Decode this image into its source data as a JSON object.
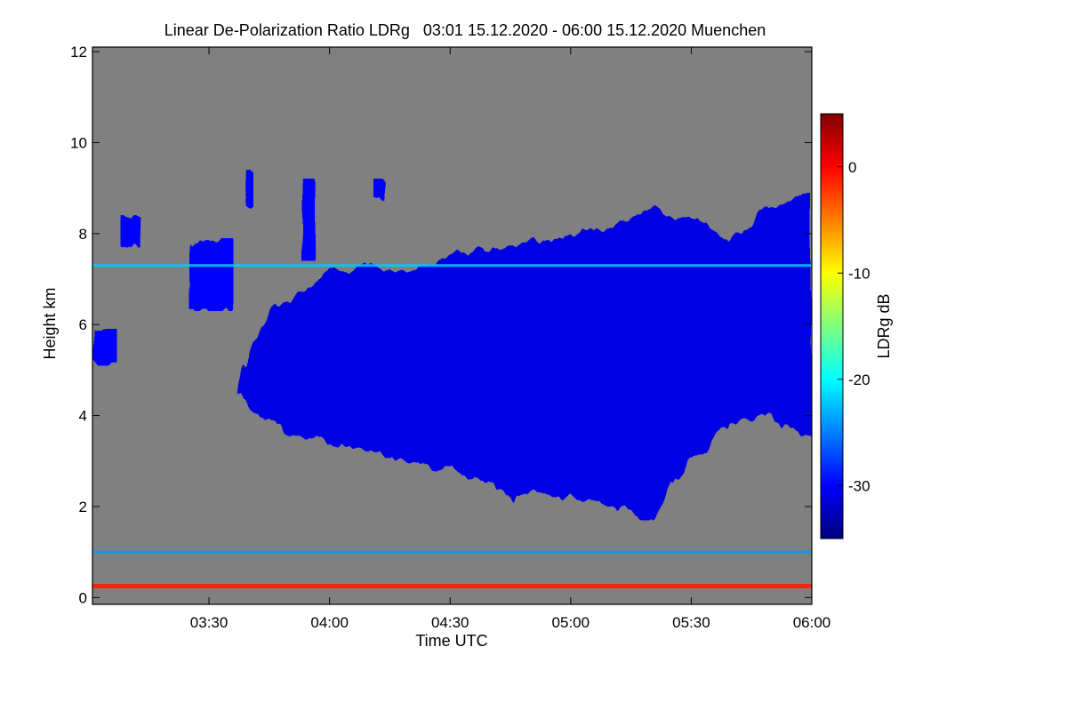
{
  "chart_data": {
    "type": "heatmap",
    "title": "Linear De-Polarization Ratio LDRg   03:01 15.12.2020 - 06:00 15.12.2020 Muenchen",
    "xlabel": "Time UTC",
    "ylabel": "Height km",
    "xlim": [
      "03:01",
      "06:00"
    ],
    "ylim": [
      -0.15,
      12.1
    ],
    "x_ticks": [
      {
        "value": "03:30",
        "label": "03:30"
      },
      {
        "value": "04:00",
        "label": "04:00"
      },
      {
        "value": "04:30",
        "label": "04:30"
      },
      {
        "value": "05:00",
        "label": "05:00"
      },
      {
        "value": "05:30",
        "label": "05:30"
      },
      {
        "value": "06:00",
        "label": "06:00"
      }
    ],
    "y_ticks": [
      {
        "value": 0,
        "label": "0"
      },
      {
        "value": 2,
        "label": "2"
      },
      {
        "value": 4,
        "label": "4"
      },
      {
        "value": 6,
        "label": "6"
      },
      {
        "value": 8,
        "label": "8"
      },
      {
        "value": 10,
        "label": "10"
      },
      {
        "value": 12,
        "label": "12"
      }
    ],
    "colorbar": {
      "label": "LDRg dB",
      "range": [
        -35,
        5
      ],
      "ticks": [
        {
          "value": 0,
          "label": "0"
        },
        {
          "value": -10,
          "label": "-10"
        },
        {
          "value": -20,
          "label": "-20"
        },
        {
          "value": -30,
          "label": "-30"
        }
      ],
      "colormap": [
        "#00007f",
        "#0000ff",
        "#007fff",
        "#00ffff",
        "#7fff7f",
        "#ffff00",
        "#ff7f00",
        "#ff0000",
        "#7f0000"
      ]
    },
    "no_data_color": "#808080",
    "features": {
      "main_cloud": {
        "ldr_db": -31,
        "top_profile": [
          [
            "03:37",
            4.6
          ],
          [
            "03:40",
            5.6
          ],
          [
            "03:45",
            6.2
          ],
          [
            "03:50",
            6.6
          ],
          [
            "03:55",
            6.8
          ],
          [
            "04:00",
            7.2
          ],
          [
            "04:10",
            7.3
          ],
          [
            "04:20",
            7.2
          ],
          [
            "04:30",
            7.5
          ],
          [
            "04:40",
            7.6
          ],
          [
            "04:50",
            7.8
          ],
          [
            "05:00",
            8.0
          ],
          [
            "05:10",
            8.2
          ],
          [
            "05:20",
            8.5
          ],
          [
            "05:30",
            8.4
          ],
          [
            "05:40",
            7.9
          ],
          [
            "05:45",
            8.2
          ],
          [
            "05:50",
            8.6
          ],
          [
            "06:00",
            8.9
          ]
        ],
        "base_profile": [
          [
            "03:37",
            4.5
          ],
          [
            "03:42",
            4.1
          ],
          [
            "03:50",
            3.6
          ],
          [
            "04:00",
            3.4
          ],
          [
            "04:10",
            3.2
          ],
          [
            "04:20",
            3.0
          ],
          [
            "04:30",
            2.8
          ],
          [
            "04:40",
            2.5
          ],
          [
            "04:45",
            2.0
          ],
          [
            "04:50",
            2.4
          ],
          [
            "05:00",
            2.2
          ],
          [
            "05:10",
            2.1
          ],
          [
            "05:15",
            1.9
          ],
          [
            "05:20",
            1.7
          ],
          [
            "05:25",
            2.4
          ],
          [
            "05:30",
            3.0
          ],
          [
            "05:40",
            3.8
          ],
          [
            "05:50",
            4.0
          ],
          [
            "05:55",
            3.7
          ],
          [
            "06:00",
            3.4
          ]
        ]
      },
      "upper_fallstreaks": {
        "ldr_db": -30,
        "cells": [
          {
            "start": "03:08",
            "end": "03:14",
            "bottom": 7.7,
            "top": 8.4
          },
          {
            "start": "03:25",
            "end": "03:36",
            "bottom": 6.3,
            "top": 7.9
          },
          {
            "start": "03:39",
            "end": "03:41",
            "bottom": 8.5,
            "top": 9.4
          },
          {
            "start": "03:53",
            "end": "03:57",
            "bottom": 7.4,
            "top": 9.2
          },
          {
            "start": "04:11",
            "end": "04:14",
            "bottom": 8.7,
            "top": 9.2
          }
        ]
      },
      "early_cloud": {
        "start": "03:01",
        "end": "03:07",
        "bottom": 5.1,
        "top": 5.9,
        "ldr_db": -30
      },
      "aerosol_layer_7_3km": {
        "height": 7.3,
        "start": "03:01",
        "end": "06:00",
        "ldr_db": -22
      },
      "aerosol_layer_1km": {
        "height": 1.0,
        "start": "03:01",
        "end": "06:00",
        "ldr_db": -24
      },
      "ground_layer": {
        "height": 0.25,
        "start": "03:01",
        "end": "06:00",
        "ldr_db": -1
      }
    }
  }
}
